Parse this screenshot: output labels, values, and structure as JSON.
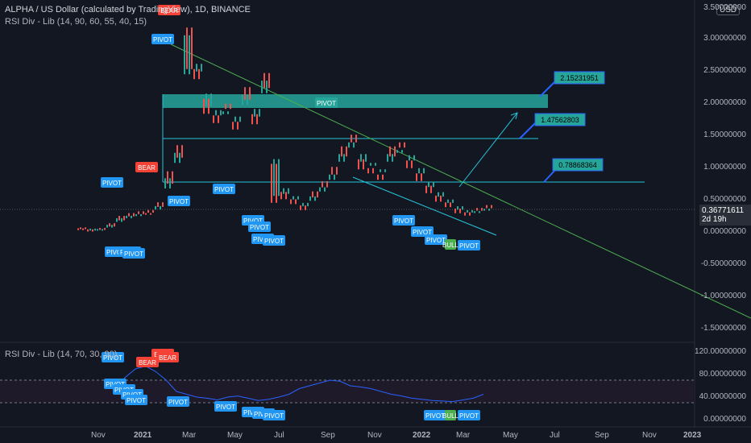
{
  "header": {
    "symbol_title": "ALPHA / US Dollar (calculated by TradingView), 1D, BINANCE",
    "indicator_top": "RSI Div - Lib (14, 90, 60, 55, 40, 15)",
    "indicator_bottom": "RSI Div - Lib (14, 70, 30, 90)"
  },
  "currency_badge": "USD",
  "last_price": {
    "value": "0.36771611",
    "countdown": "2d 19h"
  },
  "price_axis": [
    "3.50000000",
    "3.00000000",
    "2.50000000",
    "2.00000000",
    "1.50000000",
    "1.00000000",
    "0.50000000",
    "0.00000000",
    "-0.50000000",
    "-1.00000000",
    "-1.50000000"
  ],
  "rsi_axis": [
    "120.00000000",
    "80.00000000",
    "40.00000000",
    "0.00000000"
  ],
  "time_axis": [
    "Nov",
    "2021",
    "Mar",
    "May",
    "Jul",
    "Sep",
    "Nov",
    "2022",
    "Mar",
    "May",
    "Jul",
    "Sep",
    "Nov",
    "2023"
  ],
  "target_labels": [
    "2.15231951",
    "1.47562803",
    "0.78868364"
  ],
  "colors": {
    "background": "#131722",
    "pivot": "#2196f3",
    "bear": "#f44336",
    "bull": "#4caf50",
    "trend": "#4caf50",
    "target": "#26c6da",
    "zone": "#26a69a",
    "rsi_line": "#2962ff"
  },
  "chart_data": {
    "type": "line",
    "price_ylim": [
      -1.5,
      3.5
    ],
    "rsi_ylim": [
      0,
      120
    ],
    "pivot_label": "PIVOT",
    "bear_label": "BEAR",
    "bull_label": "BULL",
    "zone_label": "PIVOT",
    "price_series_approx": [
      0.05,
      0.03,
      0.04,
      0.1,
      0.2,
      0.25,
      0.28,
      0.3,
      0.4,
      0.8,
      1.2,
      2.8,
      2.5,
      2.0,
      1.8,
      1.9,
      1.7,
      2.1,
      1.8,
      2.3,
      0.8,
      0.6,
      0.5,
      0.4,
      0.55,
      0.7,
      0.9,
      1.2,
      1.4,
      1.1,
      1.0,
      0.9,
      1.2,
      1.3,
      1.1,
      0.9,
      0.7,
      0.55,
      0.45,
      0.35,
      0.3,
      0.33,
      0.37
    ],
    "rsi_series_approx": [
      60,
      55,
      75,
      90,
      95,
      85,
      70,
      50,
      45,
      40,
      38,
      35,
      40,
      42,
      38,
      34,
      36,
      40,
      45,
      55,
      60,
      65,
      70,
      68,
      60,
      58,
      55,
      50,
      45,
      42,
      38,
      36,
      34,
      33,
      32,
      35,
      38,
      45
    ]
  }
}
